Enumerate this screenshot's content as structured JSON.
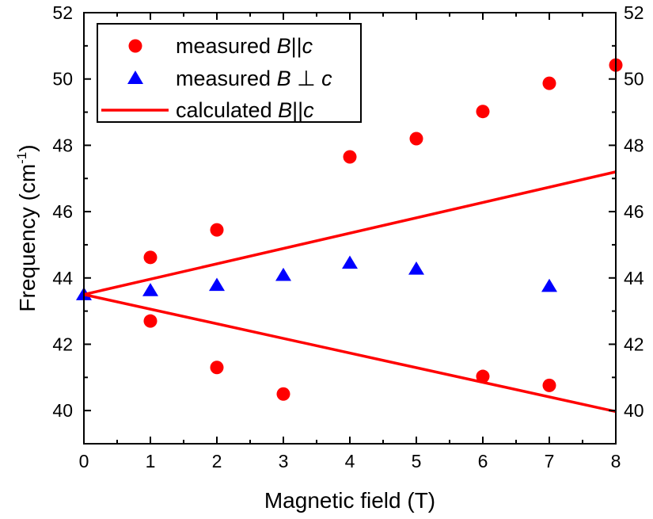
{
  "chart_data": {
    "type": "scatter",
    "xlabel": "Magnetic field (T)",
    "ylabel": "Frequency (cm",
    "ylabel_superscript": "-1",
    "ylabel_suffix": ")",
    "xlim": [
      0,
      8
    ],
    "ylim": [
      39,
      52
    ],
    "x_ticks": [
      0,
      1,
      2,
      3,
      4,
      5,
      6,
      7,
      8
    ],
    "x_tick_labels": [
      "0",
      "1",
      "2",
      "3",
      "4",
      "5",
      "6",
      "7",
      "8"
    ],
    "y_ticks": [
      40,
      42,
      44,
      46,
      48,
      50,
      52
    ],
    "y_tick_labels": [
      "40",
      "42",
      "44",
      "46",
      "48",
      "50",
      "52"
    ],
    "right_axis_tick_labels": [
      "40",
      "42",
      "44",
      "46",
      "48",
      "50",
      "52"
    ],
    "grid": false,
    "legend_position": "top-left",
    "series": [
      {
        "name": "measured B||c",
        "legend_prefix": "measured ",
        "legend_italic": "B",
        "legend_symbol": "||",
        "legend_italic_end": "c",
        "marker": "circle",
        "color": "#ff0000",
        "points": [
          [
            1,
            44.62
          ],
          [
            1,
            42.7
          ],
          [
            2,
            45.45
          ],
          [
            2,
            41.3
          ],
          [
            3,
            40.5
          ],
          [
            4,
            47.65
          ],
          [
            5,
            48.2
          ],
          [
            6,
            49.02
          ],
          [
            6,
            41.03
          ],
          [
            7,
            49.87
          ],
          [
            7,
            40.76
          ],
          [
            8,
            50.42
          ]
        ]
      },
      {
        "name": "measured B⊥c",
        "legend_prefix": "measured ",
        "legend_italic": "B",
        "legend_symbol": " ⊥ ",
        "legend_italic_end": "c",
        "marker": "triangle",
        "color": "#0000ff",
        "points": [
          [
            0,
            43.5
          ],
          [
            1,
            43.62
          ],
          [
            2,
            43.78
          ],
          [
            3,
            44.08
          ],
          [
            4,
            44.45
          ],
          [
            5,
            44.27
          ],
          [
            7,
            43.75
          ]
        ]
      },
      {
        "name": "calculated B||c",
        "legend_prefix": "calculated ",
        "legend_italic": "B",
        "legend_symbol": "||",
        "legend_italic_end": "c",
        "marker": "line",
        "color": "#ff0000",
        "lines": [
          [
            [
              0,
              43.5
            ],
            [
              8,
              47.2
            ]
          ],
          [
            [
              0,
              43.5
            ],
            [
              8,
              39.97
            ]
          ]
        ]
      }
    ]
  }
}
